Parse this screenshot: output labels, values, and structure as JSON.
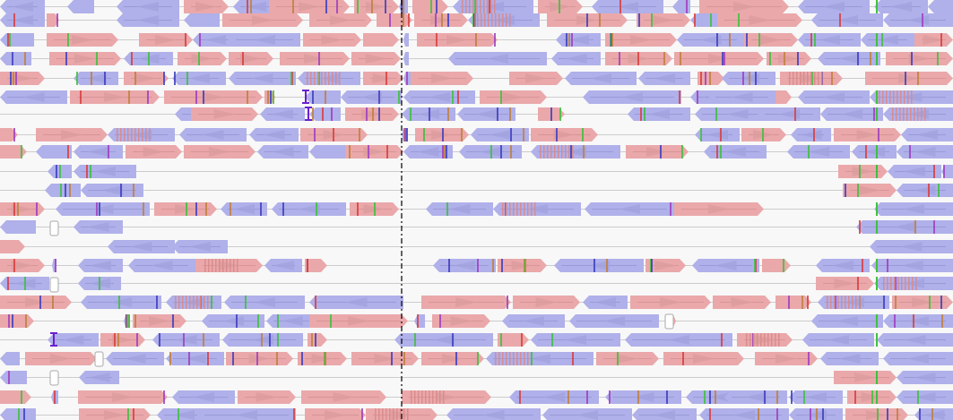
{
  "colors": {
    "background": "#f8f8f8",
    "forward_feature": "#eaa8aa",
    "reverse_feature": "#b0b0ea",
    "baseline": "#cccccc",
    "dense_mismatch": "#d98a8a",
    "cursor_line": "#000000",
    "insertion_marker": "#6a1fd0",
    "mismatch_colors": [
      "#d84040",
      "#40c040",
      "#4040c0",
      "#c08040",
      "#a040c0"
    ]
  },
  "view": {
    "track_count": 21,
    "cursor": {
      "style": "dash-dot"
    }
  }
}
